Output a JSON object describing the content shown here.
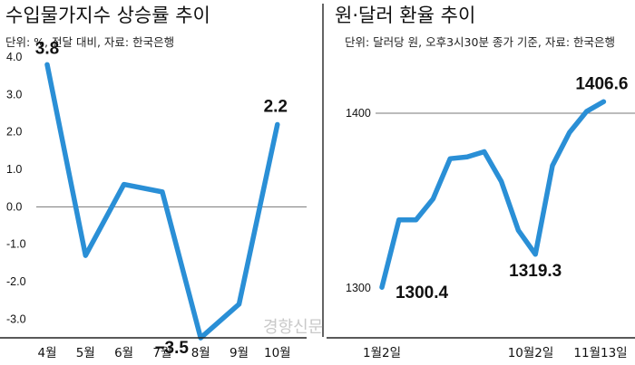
{
  "chart_data": [
    {
      "type": "line",
      "title": "수입물가지수 상승률 추이",
      "unit_note": "단위: %, 전달 대비, 자료: 한국은행",
      "x": [
        "4월",
        "5월",
        "6월",
        "7월",
        "8월",
        "9월",
        "10월"
      ],
      "values": [
        3.8,
        -1.3,
        0.6,
        0.4,
        -3.5,
        -2.6,
        2.2
      ],
      "ylim": [
        -4.2,
        4.8
      ],
      "yticks": [
        "4.0",
        "3.0",
        "2.0",
        "1.0",
        "0.0",
        "-1.0",
        "-2.0",
        "-3.0"
      ],
      "ytick_values": [
        4,
        3,
        2,
        1,
        0,
        -1,
        -2,
        -3
      ],
      "grid": false,
      "reference_line": 0,
      "data_labels": [
        {
          "index": 0,
          "text": "3.8"
        },
        {
          "index": 4,
          "text": "−3.5"
        },
        {
          "index": 6,
          "text": "2.2"
        }
      ],
      "color": "#2a8fd6"
    },
    {
      "type": "line",
      "title": "원·달러 환율 추이",
      "unit_note": "단위: 달러당 원, 오후3시30분 종가 기준, 자료: 한국은행",
      "x_tick_labels": [
        "1월2일",
        "10월2일",
        "11월13일"
      ],
      "x_tick_indices": [
        0,
        13,
        17
      ],
      "values": [
        1300.4,
        1339,
        1339,
        1351,
        1374,
        1375,
        1378,
        1361,
        1333,
        1319.3,
        1370,
        1389,
        1401,
        1406.6
      ],
      "point_indices": [
        0,
        1,
        2,
        3,
        4,
        5,
        6,
        7,
        8,
        9,
        10,
        11,
        12,
        13
      ],
      "ylim": [
        1292,
        1418
      ],
      "yticks": [
        "1400",
        "1300"
      ],
      "ytick_values": [
        1400,
        1300
      ],
      "reference_line": 1400,
      "data_labels": [
        {
          "index": 0,
          "text": "1300.4"
        },
        {
          "index": 9,
          "text": "1319.3"
        },
        {
          "index": 13,
          "text": "1406.6"
        }
      ],
      "color": "#2a8fd6"
    }
  ],
  "watermark": "경향신문"
}
